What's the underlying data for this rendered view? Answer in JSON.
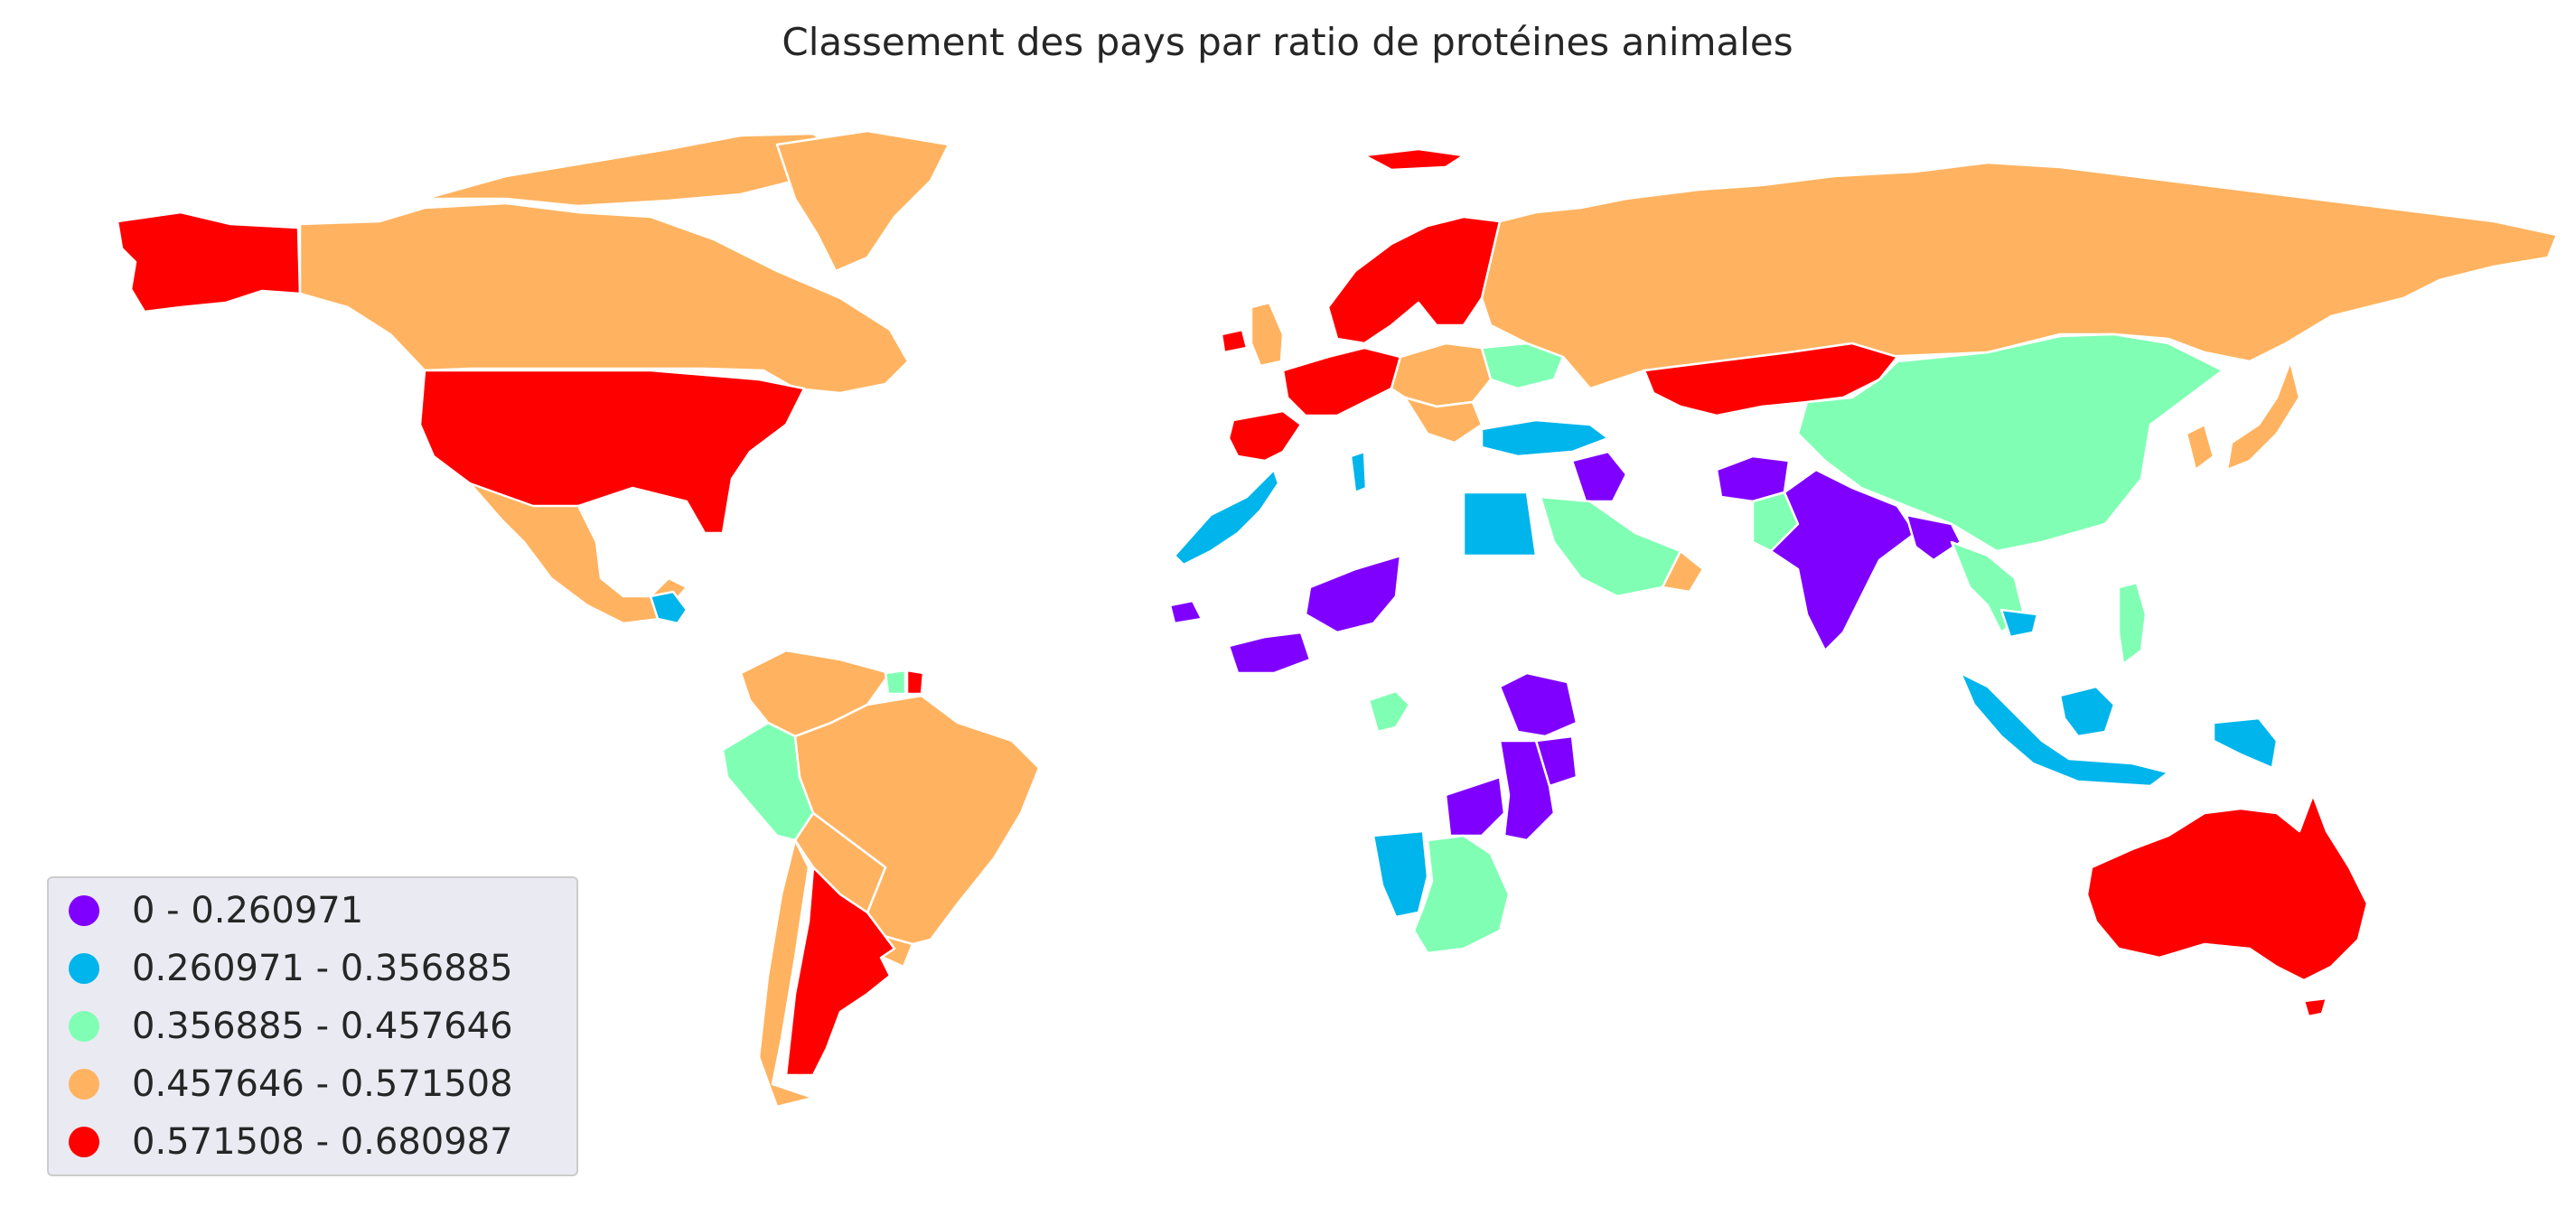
{
  "title": "Classement des pays par ratio de protéines animales",
  "legend": {
    "items": [
      {
        "label": "0 - 0.260971",
        "color": "#8000ff"
      },
      {
        "label": "0.260971 - 0.356885",
        "color": "#00b5eb"
      },
      {
        "label": "0.356885 - 0.457646",
        "color": "#80ffb4"
      },
      {
        "label": "0.457646 - 0.571508",
        "color": "#ffb360"
      },
      {
        "label": "0.571508 - 0.680987",
        "color": "#ff0000"
      }
    ]
  },
  "regions": [
    {
      "name": "alaska",
      "class": 4
    },
    {
      "name": "canada",
      "class": 3
    },
    {
      "name": "greenland",
      "class": 3
    },
    {
      "name": "canada-islands",
      "class": 3
    },
    {
      "name": "usa",
      "class": 4
    },
    {
      "name": "mexico",
      "class": 3
    },
    {
      "name": "central-america",
      "class": 1
    },
    {
      "name": "colombia-venezuela",
      "class": 3
    },
    {
      "name": "suriname",
      "class": 2
    },
    {
      "name": "french-guiana",
      "class": 4
    },
    {
      "name": "peru-ecuador",
      "class": 2
    },
    {
      "name": "brazil",
      "class": 3
    },
    {
      "name": "bolivia-paraguay",
      "class": 3
    },
    {
      "name": "uruguay",
      "class": 3
    },
    {
      "name": "chile",
      "class": 3
    },
    {
      "name": "argentina",
      "class": 4
    },
    {
      "name": "iceland",
      "class": 4
    },
    {
      "name": "scandinavia",
      "class": 4
    },
    {
      "name": "ireland",
      "class": 4
    },
    {
      "name": "uk",
      "class": 3
    },
    {
      "name": "france-west-europe",
      "class": 4
    },
    {
      "name": "iberia",
      "class": 4
    },
    {
      "name": "central-europe",
      "class": 3
    },
    {
      "name": "ukraine",
      "class": 2
    },
    {
      "name": "balkans",
      "class": 3
    },
    {
      "name": "turkey",
      "class": 1
    },
    {
      "name": "russia",
      "class": 3
    },
    {
      "name": "kazakhstan",
      "class": 4
    },
    {
      "name": "china",
      "class": 2
    },
    {
      "name": "japan",
      "class": 3
    },
    {
      "name": "korea",
      "class": 3
    },
    {
      "name": "morocco-sahara",
      "class": 1
    },
    {
      "name": "tunisia",
      "class": 1
    },
    {
      "name": "egypt",
      "class": 1
    },
    {
      "name": "saudi-arabia",
      "class": 2
    },
    {
      "name": "yemen-oman",
      "class": 3
    },
    {
      "name": "iraq",
      "class": 0
    },
    {
      "name": "afghanistan",
      "class": 0
    },
    {
      "name": "pakistan",
      "class": 2
    },
    {
      "name": "india",
      "class": 0
    },
    {
      "name": "bangladesh-myanmar",
      "class": 0
    },
    {
      "name": "southeast-asia",
      "class": 2
    },
    {
      "name": "cambodia",
      "class": 1
    },
    {
      "name": "philippines",
      "class": 2
    },
    {
      "name": "indonesia",
      "class": 1
    },
    {
      "name": "borneo",
      "class": 1
    },
    {
      "name": "new-guinea",
      "class": 1
    },
    {
      "name": "niger-chad",
      "class": 0
    },
    {
      "name": "senegal",
      "class": 0
    },
    {
      "name": "west-africa",
      "class": 0
    },
    {
      "name": "gabon-congo",
      "class": 2
    },
    {
      "name": "ethiopia-horn",
      "class": 0
    },
    {
      "name": "kenya",
      "class": 0
    },
    {
      "name": "tanzania-mozambique",
      "class": 0
    },
    {
      "name": "zambia-zimbabwe",
      "class": 0
    },
    {
      "name": "namibia",
      "class": 1
    },
    {
      "name": "botswana-south-africa",
      "class": 2
    },
    {
      "name": "australia",
      "class": 4
    },
    {
      "name": "tasmania",
      "class": 4
    }
  ]
}
